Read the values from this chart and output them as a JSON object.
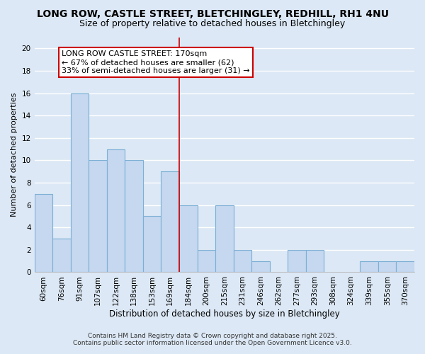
{
  "title": "LONG ROW, CASTLE STREET, BLETCHINGLEY, REDHILL, RH1 4NU",
  "subtitle": "Size of property relative to detached houses in Bletchingley",
  "xlabel": "Distribution of detached houses by size in Bletchingley",
  "ylabel": "Number of detached properties",
  "categories": [
    "60sqm",
    "76sqm",
    "91sqm",
    "107sqm",
    "122sqm",
    "138sqm",
    "153sqm",
    "169sqm",
    "184sqm",
    "200sqm",
    "215sqm",
    "231sqm",
    "246sqm",
    "262sqm",
    "277sqm",
    "293sqm",
    "308sqm",
    "324sqm",
    "339sqm",
    "355sqm",
    "370sqm"
  ],
  "values": [
    7,
    3,
    16,
    10,
    11,
    10,
    5,
    9,
    6,
    2,
    6,
    2,
    1,
    0,
    2,
    2,
    0,
    0,
    1,
    1,
    1
  ],
  "bar_color": "#c5d8f0",
  "bar_edge_color": "#7bafd4",
  "highlight_index": 7,
  "highlight_line_color": "#cc0000",
  "annotation_text": "LONG ROW CASTLE STREET: 170sqm\n← 67% of detached houses are smaller (62)\n33% of semi-detached houses are larger (31) →",
  "annotation_box_color": "#ffffff",
  "annotation_box_edge_color": "#cc0000",
  "ylim": [
    0,
    21
  ],
  "yticks": [
    0,
    2,
    4,
    6,
    8,
    10,
    12,
    14,
    16,
    18,
    20
  ],
  "bg_color": "#dce8f5",
  "plot_bg_color": "#dce8f5",
  "grid_color": "#ffffff",
  "footer_line1": "Contains HM Land Registry data © Crown copyright and database right 2025.",
  "footer_line2": "Contains public sector information licensed under the Open Government Licence v3.0.",
  "title_fontsize": 10,
  "subtitle_fontsize": 9,
  "xlabel_fontsize": 8.5,
  "ylabel_fontsize": 8,
  "tick_fontsize": 7.5,
  "annotation_fontsize": 8,
  "footer_fontsize": 6.5
}
